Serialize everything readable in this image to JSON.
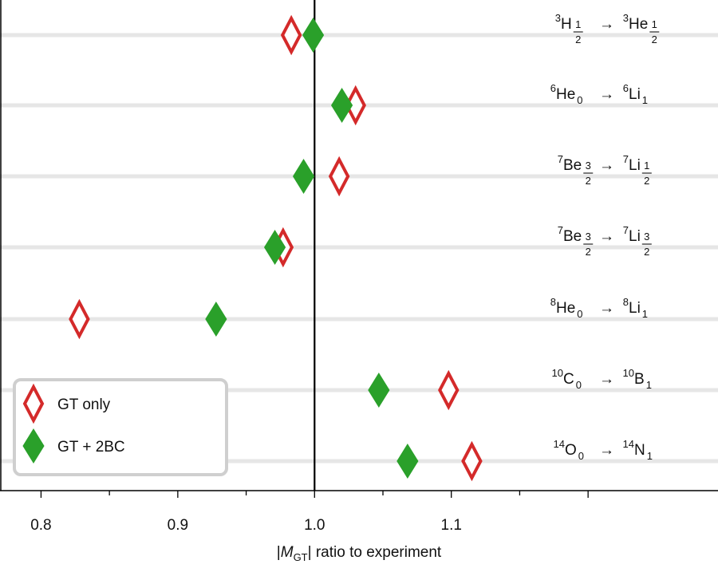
{
  "chart_data": {
    "type": "scatter",
    "xlabel": {
      "pre": "|",
      "main": "M",
      "sub": "GT",
      "post": "| ratio to experiment"
    },
    "xlim": [
      0.77,
      1.295
    ],
    "xticks": [
      0.8,
      0.9,
      1.0,
      1.1
    ],
    "xtick_labels": [
      "0.8",
      "0.9",
      "1.0",
      "1.1"
    ],
    "reference_line_x": 1.0,
    "grid": "horizontal lines at each transition",
    "legend_position": "bottom-left",
    "series": [
      {
        "name": "GT only",
        "marker": "open-diamond",
        "color": "#d42a2a",
        "values": [
          0.983,
          1.03,
          1.018,
          0.977,
          0.828,
          1.098,
          1.115
        ]
      },
      {
        "name": "GT + 2BC",
        "marker": "filled-diamond",
        "color": "#2aa02a",
        "values": [
          0.999,
          1.02,
          0.992,
          0.971,
          0.928,
          1.047,
          1.068
        ]
      }
    ],
    "transitions": [
      {
        "from": {
          "sup": "3",
          "el": "H",
          "subnum": "1",
          "subden": "2"
        },
        "arrow": "→",
        "to": {
          "sup": "3",
          "el": "He",
          "subnum": "1",
          "subden": "2"
        }
      },
      {
        "from": {
          "sup": "6",
          "el": "He",
          "sub": "0"
        },
        "arrow": "→",
        "to": {
          "sup": "6",
          "el": "Li",
          "sub": "1"
        }
      },
      {
        "from": {
          "sup": "7",
          "el": "Be",
          "subnum": "3",
          "subden": "2"
        },
        "arrow": "→",
        "to": {
          "sup": "7",
          "el": "Li",
          "subnum": "1",
          "subden": "2"
        }
      },
      {
        "from": {
          "sup": "7",
          "el": "Be",
          "subnum": "3",
          "subden": "2"
        },
        "arrow": "→",
        "to": {
          "sup": "7",
          "el": "Li",
          "subnum": "3",
          "subden": "2"
        }
      },
      {
        "from": {
          "sup": "8",
          "el": "He",
          "sub": "0"
        },
        "arrow": "→",
        "to": {
          "sup": "8",
          "el": "Li",
          "sub": "1"
        }
      },
      {
        "from": {
          "sup": "10",
          "el": "C",
          "sub": "0"
        },
        "arrow": "→",
        "to": {
          "sup": "10",
          "el": "B",
          "sub": "1"
        }
      },
      {
        "from": {
          "sup": "14",
          "el": "O",
          "sub": "0"
        },
        "arrow": "→",
        "to": {
          "sup": "14",
          "el": "N",
          "sub": "1"
        }
      }
    ],
    "legend": [
      {
        "label": "GT only",
        "marker": "open-diamond",
        "color": "#d42a2a"
      },
      {
        "label": "GT + 2BC",
        "marker": "filled-diamond",
        "color": "#2aa02a"
      }
    ]
  }
}
